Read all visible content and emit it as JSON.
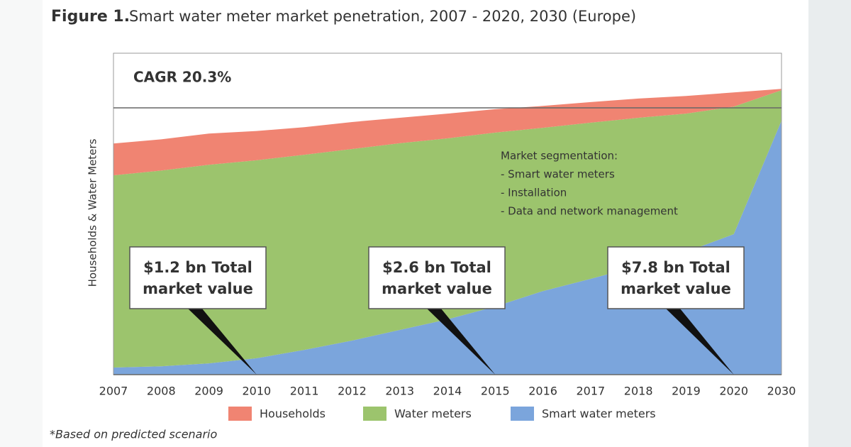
{
  "chart_data": {
    "type": "stacked_area",
    "figure_label": "Figure 1.",
    "title": "Smart water meter market penetration, 2007 - 2020, 2030 (Europe)",
    "y_axis_label": "Households & Water Meters",
    "categories": [
      "2007",
      "2008",
      "2009",
      "2010",
      "2011",
      "2012",
      "2013",
      "2014",
      "2015",
      "2016",
      "2017",
      "2018",
      "2019",
      "2020",
      "2030"
    ],
    "ylim": [
      0,
      100
    ],
    "series": [
      {
        "name": "Households",
        "color": "#f08472",
        "values": [
          9.9,
          9.7,
          9.7,
          9.1,
          8.6,
          8.4,
          7.9,
          7.7,
          7.3,
          6.8,
          6.4,
          6.0,
          5.5,
          4.4,
          0.4
        ]
      },
      {
        "name": "Water meters",
        "color": "#9cc46d",
        "values": [
          59.8,
          60.9,
          61.8,
          61.6,
          60.7,
          59.6,
          58.1,
          56.3,
          54.1,
          50.8,
          48.6,
          46.1,
          43.0,
          39.7,
          9.5
        ]
      },
      {
        "name": "Smart water meters",
        "color": "#7ba5dc",
        "values": [
          2.2,
          2.6,
          3.5,
          5.1,
          7.7,
          10.6,
          13.9,
          17.2,
          21.2,
          26.0,
          29.8,
          33.8,
          38.2,
          43.7,
          79.0
        ]
      }
    ],
    "annotations": {
      "cagr": "CAGR 20.3%",
      "segmentation": [
        "Market segmentation:",
        "- Smart water meters",
        "- Installation",
        "- Data and network management"
      ],
      "callouts": [
        [
          "$1.2 bn Total",
          "market value"
        ],
        [
          "$2.6 bn Total",
          "market value"
        ],
        [
          "$7.8 bn Total",
          "market value"
        ]
      ]
    },
    "footnote": "*Based on predicted scenario"
  }
}
